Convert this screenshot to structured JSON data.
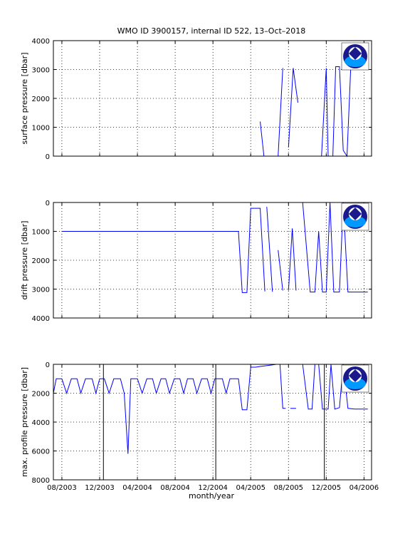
{
  "chart_data": {
    "title": "WMO ID 3900157, internal ID 522, 13–Oct–2018",
    "xlabel": "month/year",
    "x_ticks": [
      "08/2003",
      "12/2003",
      "04/2004",
      "08/2004",
      "12/2004",
      "04/2005",
      "08/2005",
      "12/2005",
      "04/2006"
    ],
    "x_tick_months": [
      0,
      4,
      8,
      12,
      16,
      20,
      24,
      28,
      32
    ],
    "xlim_months": [
      -0.9,
      32.8
    ],
    "grid": true,
    "logo": "noaa-logo",
    "panels": [
      {
        "type": "line",
        "ylabel": "surface pressure [dbar]",
        "ylim": [
          0,
          4000
        ],
        "y_reversed": false,
        "y_ticks": [
          "0",
          "1000",
          "2000",
          "3000",
          "4000"
        ],
        "y_tick_values": [
          0,
          1000,
          2000,
          3000,
          4000
        ],
        "series": [
          {
            "segments": [
              [
                [
                  0,
                  0
                ],
                [
                  21,
                  0
                ]
              ],
              [
                [
                  21,
                  1200
                ],
                [
                  21.4,
                  0
                ]
              ],
              [
                [
                  22.9,
                  0
                ],
                [
                  23.4,
                  3050
                ]
              ],
              [
                [
                  24,
                  300
                ],
                [
                  24.5,
                  3050
                ],
                [
                  25,
                  1850
                ]
              ],
              [
                [
                  27.5,
                  0
                ],
                [
                  28,
                  3050
                ],
                [
                  28.2,
                  0
                ]
              ],
              [
                [
                  28.7,
                  0
                ],
                [
                  29,
                  3100
                ],
                [
                  29.4,
                  3100
                ],
                [
                  29.8,
                  200
                ],
                [
                  30.2,
                  0
                ],
                [
                  30.6,
                  3100
                ],
                [
                  31,
                  3100
                ]
              ]
            ]
          }
        ],
        "vlines": []
      },
      {
        "type": "line",
        "ylabel": "drift pressure [dbar]",
        "ylim": [
          4000,
          0
        ],
        "y_reversed": true,
        "y_ticks": [
          "0",
          "1000",
          "2000",
          "3000",
          "4000"
        ],
        "y_tick_values": [
          0,
          1000,
          2000,
          3000,
          4000
        ],
        "series": [
          {
            "segments": [
              [
                [
                  0,
                  1000
                ],
                [
                  16,
                  1000
                ],
                [
                  18.7,
                  1000
                ],
                [
                  19.1,
                  3120
                ],
                [
                  19.6,
                  3120
                ],
                [
                  20,
                  200
                ],
                [
                  21,
                  200
                ],
                [
                  21.5,
                  3080
                ]
              ],
              [
                [
                  21.7,
                  150
                ],
                [
                  22.3,
                  3090
                ]
              ],
              [
                [
                  22.9,
                  1650
                ],
                [
                  23.4,
                  3050
                ]
              ],
              [
                [
                  24,
                  3050
                ],
                [
                  24.4,
                  900
                ],
                [
                  24.8,
                  3050
                ]
              ],
              [
                [
                  25.5,
                  0
                ],
                [
                  26.3,
                  3100
                ],
                [
                  26.8,
                  3100
                ],
                [
                  27.2,
                  1000
                ],
                [
                  27.6,
                  3100
                ],
                [
                  28,
                  3100
                ],
                [
                  28.4,
                  0
                ],
                [
                  28.8,
                  3100
                ],
                [
                  29.4,
                  3100
                ],
                [
                  29.8,
                  0
                ],
                [
                  30.3,
                  3100
                ],
                [
                  31,
                  3100
                ],
                [
                  32.4,
                  3100
                ]
              ]
            ]
          }
        ],
        "vlines": []
      },
      {
        "type": "line",
        "ylabel": "max. profile pressure [dbar]",
        "ylim": [
          8000,
          0
        ],
        "y_reversed": true,
        "y_ticks": [
          "0",
          "2000",
          "4000",
          "6000",
          "8000"
        ],
        "y_tick_values": [
          0,
          2000,
          4000,
          6000,
          8000
        ],
        "series": [
          {
            "segments": [
              [
                [
                  -0.9,
                  2000
                ],
                [
                  -0.6,
                  1000
                ],
                [
                  0,
                  1000
                ],
                [
                  0.5,
                  2000
                ],
                [
                  1,
                  1000
                ],
                [
                  1.6,
                  1000
                ],
                [
                  2,
                  2000
                ],
                [
                  2.5,
                  1000
                ],
                [
                  3.2,
                  1000
                ],
                [
                  3.6,
                  2000
                ],
                [
                  4,
                  1000
                ],
                [
                  4.5,
                  1000
                ],
                [
                  5,
                  2000
                ],
                [
                  5.5,
                  1000
                ],
                [
                  6.2,
                  1000
                ],
                [
                  6.6,
                  2000
                ],
                [
                  7,
                  6200
                ],
                [
                  7.3,
                  1000
                ],
                [
                  8,
                  1000
                ],
                [
                  8.5,
                  2000
                ],
                [
                  9,
                  1000
                ],
                [
                  9.6,
                  1000
                ],
                [
                  10,
                  2000
                ],
                [
                  10.5,
                  1000
                ],
                [
                  11,
                  1000
                ],
                [
                  11.4,
                  2000
                ],
                [
                  11.9,
                  1000
                ],
                [
                  12.5,
                  1000
                ],
                [
                  12.9,
                  2000
                ],
                [
                  13.3,
                  1000
                ],
                [
                  13.9,
                  1000
                ],
                [
                  14.3,
                  2000
                ],
                [
                  14.8,
                  1000
                ],
                [
                  15.4,
                  1000
                ],
                [
                  15.8,
                  2000
                ],
                [
                  16.2,
                  1000
                ],
                [
                  17,
                  1000
                ],
                [
                  17.4,
                  2000
                ],
                [
                  17.8,
                  1000
                ],
                [
                  18.7,
                  1000
                ],
                [
                  19.1,
                  3150
                ],
                [
                  19.6,
                  3150
                ],
                [
                  20,
                  200
                ],
                [
                  20.5,
                  200
                ],
                [
                  21,
                  150
                ],
                [
                  21.6,
                  100
                ],
                [
                  22.2,
                  50
                ],
                [
                  22.7,
                  0
                ],
                [
                  23.1,
                  0
                ],
                [
                  23.4,
                  3050
                ],
                [
                  23.7,
                  3050
                ]
              ],
              [
                [
                  24.2,
                  3050
                ],
                [
                  24.8,
                  3050
                ]
              ],
              [
                [
                  25.5,
                  0
                ],
                [
                  26.1,
                  3100
                ],
                [
                  26.5,
                  3100
                ],
                [
                  26.8,
                  0
                ],
                [
                  27.2,
                  0
                ],
                [
                  27.6,
                  3100
                ],
                [
                  28.2,
                  3100
                ],
                [
                  28.5,
                  0
                ],
                [
                  28.9,
                  3100
                ],
                [
                  29.4,
                  3000
                ],
                [
                  29.8,
                  0
                ],
                [
                  30.3,
                  3050
                ],
                [
                  31,
                  3100
                ],
                [
                  32.4,
                  3100
                ]
              ]
            ]
          }
        ],
        "vlines": [
          4.4,
          16.3,
          27.8
        ]
      }
    ]
  }
}
